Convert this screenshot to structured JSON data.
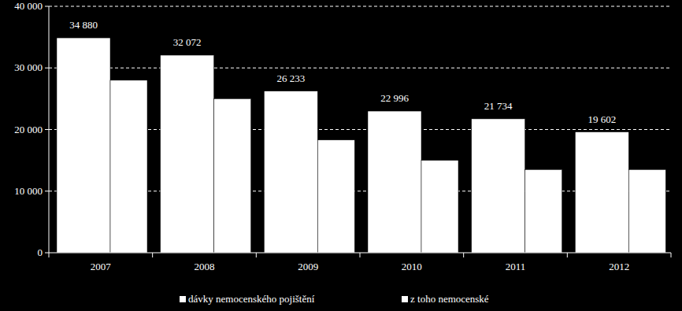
{
  "chart_data": {
    "type": "bar",
    "categories": [
      "2007",
      "2008",
      "2009",
      "2010",
      "2011",
      "2012"
    ],
    "series": [
      {
        "name": "dávky nemocenského pojištění",
        "color": "#ffffff",
        "values": [
          34880,
          32072,
          26233,
          22996,
          21734,
          19602
        ],
        "value_labels": [
          "34 880",
          "32 072",
          "26 233",
          "22 996",
          "21 734",
          "19 602"
        ]
      },
      {
        "name": "z toho nemocenské",
        "color": "#ffffff",
        "values": [
          28000,
          25000,
          18300,
          15000,
          13500,
          13500
        ]
      }
    ],
    "ylim": [
      0,
      40000
    ],
    "yticks": [
      0,
      {
        "value": 10000,
        "label": "10 000"
      },
      {
        "value": 20000,
        "label": "20 000"
      },
      {
        "value": 30000,
        "label": "30 000"
      },
      {
        "value": 40000,
        "label": "40 000"
      }
    ],
    "grid": true,
    "data_labels": true,
    "legend": "bottom"
  }
}
